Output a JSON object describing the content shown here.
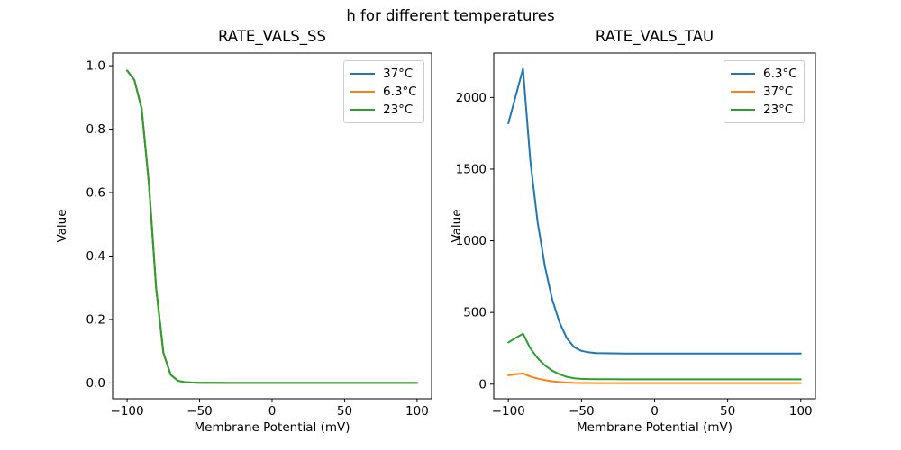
{
  "figure": {
    "suptitle": "h for different temperatures",
    "background": "#ffffff"
  },
  "colors": {
    "blue": "#1f77b4",
    "orange": "#ff7f0e",
    "green": "#2ca02c"
  },
  "chart_data": [
    {
      "type": "line",
      "title": "RATE_VALS_SS",
      "xlabel": "Membrane Potential (mV)",
      "ylabel": "Value",
      "xlim": [
        -110,
        110
      ],
      "ylim": [
        -0.05,
        1.04
      ],
      "grid": false,
      "legend_loc": "upper right",
      "xticks": [
        -100,
        -50,
        0,
        50,
        100
      ],
      "xtick_labels": [
        "−100",
        "−50",
        "0",
        "50",
        "100"
      ],
      "yticks": [
        0.0,
        0.2,
        0.4,
        0.6,
        0.8,
        1.0
      ],
      "ytick_labels": [
        "0.0",
        "0.2",
        "0.4",
        "0.6",
        "0.8",
        "1.0"
      ],
      "legend": [
        {
          "label": "37°C",
          "color": "#1f77b4"
        },
        {
          "label": "6.3°C",
          "color": "#ff7f0e"
        },
        {
          "label": "23°C",
          "color": "#2ca02c"
        }
      ],
      "x": [
        -100,
        -95,
        -90,
        -85,
        -80,
        -75,
        -70,
        -65,
        -60,
        -55,
        -50,
        -45,
        -40,
        -30,
        -20,
        -10,
        0,
        10,
        20,
        30,
        40,
        50,
        60,
        70,
        80,
        90,
        100
      ],
      "series": [
        {
          "name": "37°C",
          "color": "#1f77b4",
          "values": [
            0.985,
            0.955,
            0.865,
            0.63,
            0.3,
            0.095,
            0.026,
            0.007,
            0.002,
            0.001,
            0.0005,
            0.0003,
            0.0002,
            0.0001,
            0.0,
            0.0,
            0.0,
            0.0,
            0.0,
            0.0,
            0.0,
            0.0,
            0.0,
            0.0,
            0.0,
            0.0,
            0.0
          ]
        },
        {
          "name": "6.3°C",
          "color": "#ff7f0e",
          "values": [
            0.985,
            0.955,
            0.865,
            0.63,
            0.3,
            0.095,
            0.026,
            0.007,
            0.002,
            0.001,
            0.0005,
            0.0003,
            0.0002,
            0.0001,
            0.0,
            0.0,
            0.0,
            0.0,
            0.0,
            0.0,
            0.0,
            0.0,
            0.0,
            0.0,
            0.0,
            0.0,
            0.0
          ]
        },
        {
          "name": "23°C",
          "color": "#2ca02c",
          "values": [
            0.985,
            0.955,
            0.865,
            0.63,
            0.3,
            0.095,
            0.026,
            0.007,
            0.002,
            0.001,
            0.0005,
            0.0003,
            0.0002,
            0.0001,
            0.0,
            0.0,
            0.0,
            0.0,
            0.0,
            0.0,
            0.0,
            0.0,
            0.0,
            0.0,
            0.0,
            0.0,
            0.0
          ]
        }
      ]
    },
    {
      "type": "line",
      "title": "RATE_VALS_TAU",
      "xlabel": "Membrane Potential (mV)",
      "ylabel": "Value",
      "xlim": [
        -110,
        110
      ],
      "ylim": [
        -102,
        2310
      ],
      "grid": false,
      "legend_loc": "upper right",
      "xticks": [
        -100,
        -50,
        0,
        50,
        100
      ],
      "xtick_labels": [
        "−100",
        "−50",
        "0",
        "50",
        "100"
      ],
      "yticks": [
        0,
        500,
        1000,
        1500,
        2000
      ],
      "ytick_labels": [
        "0",
        "500",
        "1000",
        "1500",
        "2000"
      ],
      "legend": [
        {
          "label": "6.3°C",
          "color": "#1f77b4"
        },
        {
          "label": "37°C",
          "color": "#ff7f0e"
        },
        {
          "label": "23°C",
          "color": "#2ca02c"
        }
      ],
      "x": [
        -100,
        -95,
        -90,
        -85,
        -80,
        -75,
        -70,
        -65,
        -60,
        -55,
        -50,
        -45,
        -40,
        -30,
        -20,
        -10,
        0,
        10,
        20,
        30,
        40,
        50,
        60,
        70,
        80,
        90,
        100
      ],
      "series": [
        {
          "name": "6.3°C",
          "color": "#1f77b4",
          "values": [
            1820,
            2010,
            2200,
            1560,
            1130,
            820,
            590,
            430,
            320,
            258,
            232,
            222,
            217,
            215,
            214,
            214,
            214,
            214,
            214,
            214,
            214,
            214,
            214,
            214,
            214,
            214,
            214
          ]
        },
        {
          "name": "37°C",
          "color": "#ff7f0e",
          "values": [
            62,
            69,
            75,
            53,
            39,
            28,
            20,
            15,
            11,
            8.8,
            7.9,
            7.6,
            7.4,
            7.3,
            7.3,
            7.3,
            7.3,
            7.3,
            7.3,
            7.3,
            7.3,
            7.3,
            7.3,
            7.3,
            7.3,
            7.3,
            7.3
          ]
        },
        {
          "name": "23°C",
          "color": "#2ca02c",
          "values": [
            291,
            322,
            352,
            250,
            181,
            131,
            94,
            69,
            51,
            41,
            37,
            35.5,
            34.7,
            34.4,
            34.2,
            34.2,
            34.2,
            34.2,
            34.2,
            34.2,
            34.2,
            34.2,
            34.2,
            34.2,
            34.2,
            34.2,
            34.2
          ]
        }
      ]
    }
  ]
}
